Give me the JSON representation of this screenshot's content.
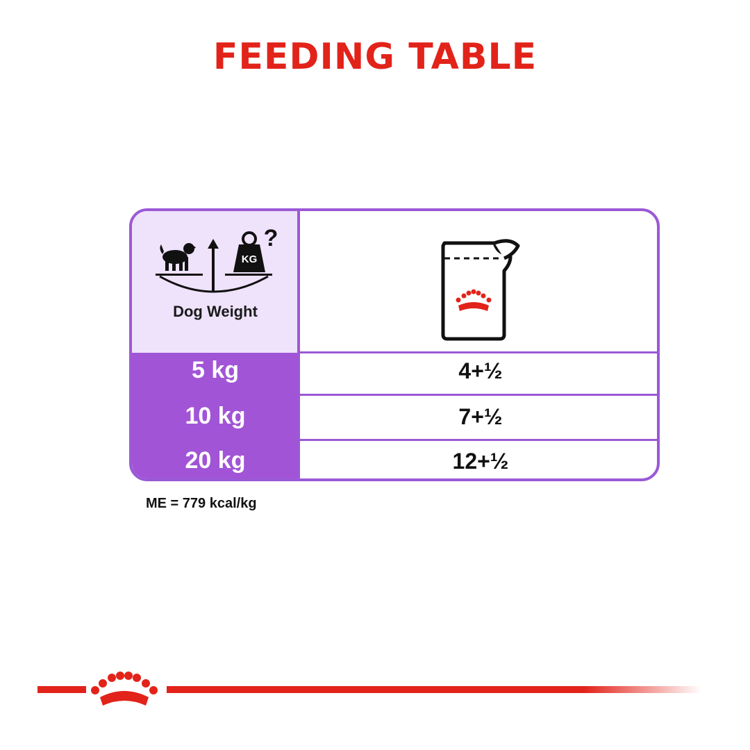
{
  "title": "FEEDING TABLE",
  "table": {
    "header": {
      "weight_label": "Dog Weight",
      "weight_icon": "dog-scale-icon",
      "scale_badge": "KG",
      "question_mark": "?",
      "pouch_icon": "wet-food-pouch-icon"
    },
    "rows": [
      {
        "weight": "5 kg",
        "amount": "4+½"
      },
      {
        "weight": "10 kg",
        "amount": "7+½"
      },
      {
        "weight": "20 kg",
        "amount": "12+½"
      }
    ]
  },
  "note": "ME = 779 kcal/kg",
  "footer": {
    "logo_icon": "royal-crown-icon"
  },
  "colors": {
    "title_red": "#e2231a",
    "purple": "#a155d6",
    "border_purple": "#9b59d6",
    "light_purple": "#efe2fb"
  }
}
